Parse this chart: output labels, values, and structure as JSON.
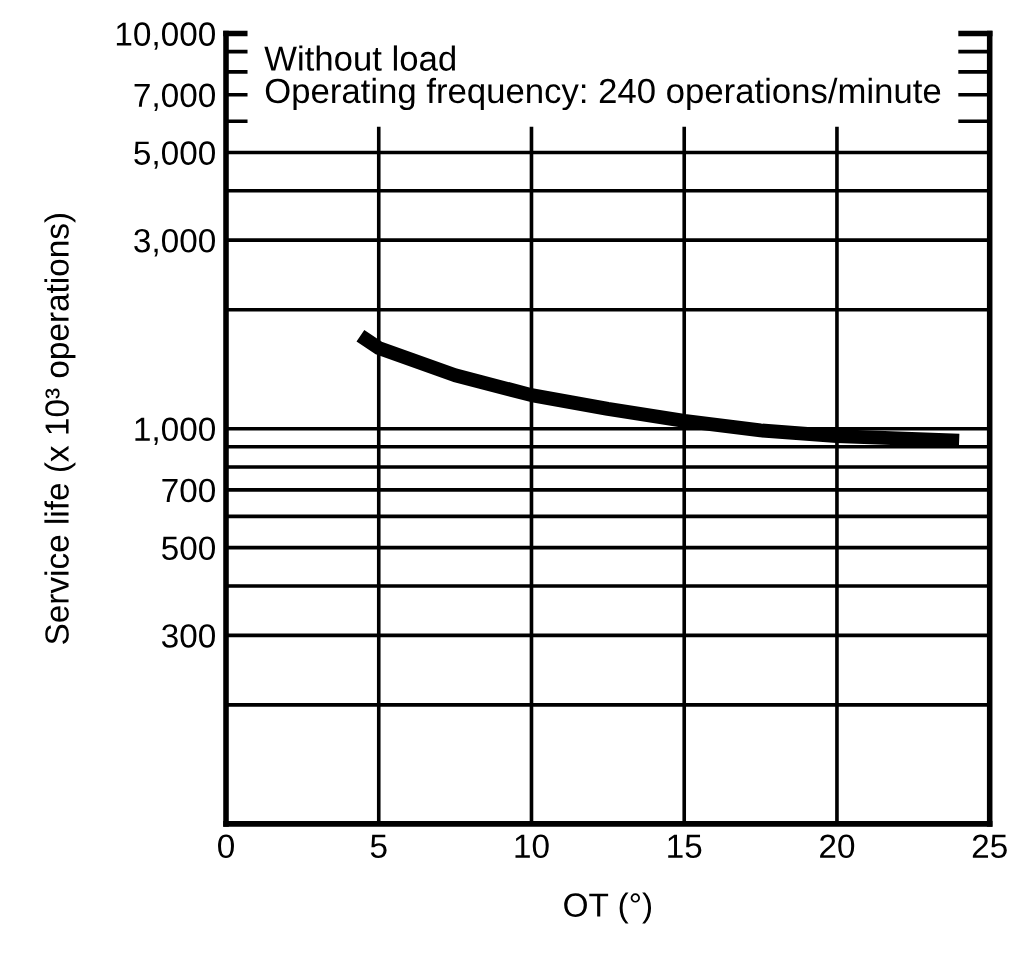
{
  "chart_data": {
    "type": "line",
    "xlabel": "OT (°)",
    "ylabel": "Service life (x 10³ operations)",
    "annotations": [
      "Without load",
      "Operating frequency: 240 operations/minute"
    ],
    "x": [
      4.4,
      5,
      7.5,
      10,
      12.5,
      15,
      17.5,
      20,
      24
    ],
    "series": [
      {
        "color": "#000000",
        "values": [
          1720,
          1600,
          1365,
          1216,
          1122,
          1047,
          990,
          958,
          933
        ]
      }
    ],
    "log": true,
    "xlim": [
      0,
      25
    ],
    "xticks": [
      0,
      5,
      10,
      15,
      20,
      25
    ],
    "ylim": [
      100,
      10000
    ],
    "yticks": [
      {
        "value": 200,
        "label": null
      },
      300,
      {
        "value": 400,
        "label": null
      },
      500,
      {
        "value": 600,
        "label": null
      },
      700,
      {
        "value": 800,
        "label": null
      },
      {
        "value": 900,
        "label": null
      },
      {
        "value": 1000,
        "label": "1,000"
      },
      {
        "value": 2000,
        "label": null
      },
      {
        "value": 3000,
        "label": "3,000"
      },
      {
        "value": 4000,
        "label": null
      },
      {
        "value": 5000,
        "label": "5,000"
      },
      {
        "value": 6000,
        "label": null
      },
      {
        "value": 7000,
        "label": "7,000"
      },
      {
        "value": 8000,
        "label": null
      },
      {
        "value": 9000,
        "label": null
      },
      {
        "value": 10000,
        "label": "10,000"
      }
    ],
    "grid": true,
    "marker": "none",
    "line_style": "solid"
  }
}
